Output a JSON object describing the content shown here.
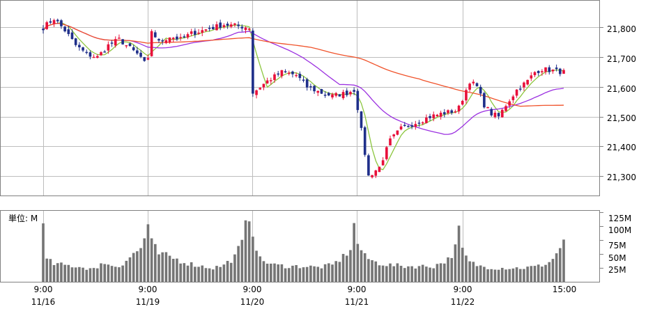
{
  "colors": {
    "up": "#e8103a",
    "down": "#1f2f8a",
    "ma5": "#8cc63f",
    "ma25": "#9b30e0",
    "ma75": "#f0522a",
    "volume": "#757575"
  },
  "price_panel": {
    "y_tick_labels": [
      "21,800",
      "21,700",
      "21,600",
      "21,500",
      "21,400",
      "21,300"
    ],
    "ylim": [
      21235,
      21890
    ]
  },
  "volume_panel": {
    "unit_label": "単位: M",
    "y_tick_labels": [
      "125M",
      "100M",
      "75M",
      "50M",
      "25M"
    ],
    "ylim": [
      0,
      128
    ]
  },
  "x_labels": [
    {
      "time": "9:00",
      "date": "11/16"
    },
    {
      "time": "9:00",
      "date": "11/19"
    },
    {
      "time": "9:00",
      "date": "11/20"
    },
    {
      "time": "9:00",
      "date": "11/21"
    },
    {
      "time": "9:00",
      "date": "11/22"
    },
    {
      "time": "15:00",
      "date": ""
    }
  ],
  "chart_data": {
    "type": "candlestick",
    "interval": "10min",
    "days": [
      "11/16",
      "11/19",
      "11/20",
      "11/21",
      "11/22"
    ],
    "price_anchors": [
      [
        0,
        21800
      ],
      [
        3,
        21830
      ],
      [
        6,
        21790
      ],
      [
        9,
        21740
      ],
      [
        12,
        21710
      ],
      [
        15,
        21700
      ],
      [
        18,
        21740
      ],
      [
        21,
        21760
      ],
      [
        24,
        21730
      ],
      [
        27,
        21700
      ],
      [
        28,
        21680
      ],
      [
        29,
        21690
      ],
      [
        30,
        21790
      ],
      [
        32,
        21750
      ],
      [
        35,
        21770
      ],
      [
        38,
        21760
      ],
      [
        41,
        21780
      ],
      [
        44,
        21790
      ],
      [
        47,
        21800
      ],
      [
        50,
        21810
      ],
      [
        57,
        21800
      ],
      [
        58,
        21580
      ],
      [
        62,
        21620
      ],
      [
        66,
        21650
      ],
      [
        70,
        21640
      ],
      [
        73,
        21600
      ],
      [
        77,
        21580
      ],
      [
        80,
        21570
      ],
      [
        84,
        21580
      ],
      [
        86,
        21590
      ],
      [
        87,
        21530
      ],
      [
        90,
        21300
      ],
      [
        93,
        21330
      ],
      [
        96,
        21420
      ],
      [
        99,
        21460
      ],
      [
        103,
        21480
      ],
      [
        107,
        21500
      ],
      [
        110,
        21510
      ],
      [
        114,
        21520
      ],
      [
        115,
        21530
      ],
      [
        116,
        21560
      ],
      [
        118,
        21620
      ],
      [
        120,
        21600
      ],
      [
        122,
        21540
      ],
      [
        124,
        21510
      ],
      [
        126,
        21500
      ],
      [
        128,
        21540
      ],
      [
        131,
        21590
      ],
      [
        134,
        21620
      ],
      [
        136,
        21650
      ],
      [
        138,
        21660
      ],
      [
        144,
        21650
      ]
    ],
    "volume_anchors": [
      [
        0,
        95
      ],
      [
        1,
        40
      ],
      [
        3,
        32
      ],
      [
        6,
        30
      ],
      [
        9,
        28
      ],
      [
        12,
        25
      ],
      [
        15,
        22
      ],
      [
        16,
        38
      ],
      [
        18,
        30
      ],
      [
        21,
        28
      ],
      [
        24,
        45
      ],
      [
        27,
        60
      ],
      [
        29,
        100
      ],
      [
        30,
        70
      ],
      [
        32,
        50
      ],
      [
        35,
        45
      ],
      [
        38,
        38
      ],
      [
        41,
        32
      ],
      [
        44,
        28
      ],
      [
        47,
        25
      ],
      [
        50,
        30
      ],
      [
        53,
        45
      ],
      [
        55,
        70
      ],
      [
        57,
        125
      ],
      [
        58,
        90
      ],
      [
        60,
        40
      ],
      [
        64,
        30
      ],
      [
        68,
        28
      ],
      [
        72,
        28
      ],
      [
        76,
        26
      ],
      [
        80,
        30
      ],
      [
        83,
        45
      ],
      [
        85,
        60
      ],
      [
        86,
        100
      ],
      [
        87,
        70
      ],
      [
        89,
        45
      ],
      [
        92,
        35
      ],
      [
        96,
        30
      ],
      [
        100,
        28
      ],
      [
        104,
        28
      ],
      [
        108,
        28
      ],
      [
        112,
        40
      ],
      [
        114,
        60
      ],
      [
        115,
        95
      ],
      [
        116,
        55
      ],
      [
        118,
        35
      ],
      [
        121,
        28
      ],
      [
        125,
        25
      ],
      [
        129,
        25
      ],
      [
        133,
        25
      ],
      [
        137,
        28
      ],
      [
        140,
        35
      ],
      [
        142,
        50
      ],
      [
        144,
        75
      ]
    ],
    "volume_unit": "M",
    "moving_averages": [
      "5",
      "25",
      "75"
    ]
  }
}
